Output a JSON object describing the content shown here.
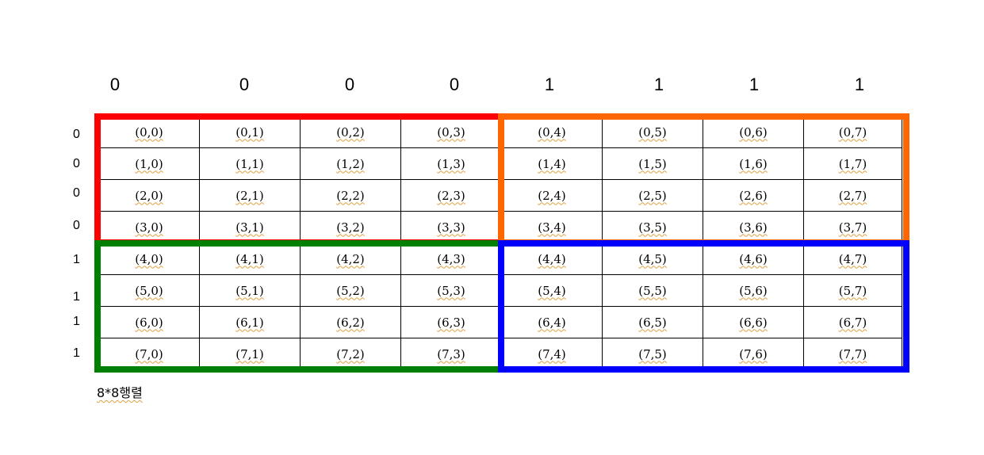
{
  "column_labels": [
    "0",
    "0",
    "0",
    "0",
    "1",
    "1",
    "1",
    "1"
  ],
  "row_labels": [
    "0",
    "0",
    "0",
    "0",
    "1",
    "1",
    "1",
    "1"
  ],
  "cells": [
    [
      "(0,0)",
      "(0,1)",
      "(0,2)",
      "(0,3)",
      "(0,4)",
      "(0,5)",
      "(0,6)",
      "(0,7)"
    ],
    [
      "(1,0)",
      "(1,1)",
      "(1,2)",
      "(1,3)",
      "(1,4)",
      "(1,5)",
      "(1,6)",
      "(1,7)"
    ],
    [
      "(2,0)",
      "(2,1)",
      "(2,2)",
      "(2,3)",
      "(2,4)",
      "(2,5)",
      "(2,6)",
      "(2,7)"
    ],
    [
      "(3,0)",
      "(3,1)",
      "(3,2)",
      "(3,3)",
      "(3,4)",
      "(3,5)",
      "(3,6)",
      "(3,7)"
    ],
    [
      "(4,0)",
      "(4,1)",
      "(4,2)",
      "(4,3)",
      "(4,4)",
      "(4,5)",
      "(4,6)",
      "(4,7)"
    ],
    [
      "(5,0)",
      "(5,1)",
      "(5,2)",
      "(5,3)",
      "(5,4)",
      "(5,5)",
      "(5,6)",
      "(5,7)"
    ],
    [
      "(6,0)",
      "(6,1)",
      "(6,2)",
      "(6,3)",
      "(6,4)",
      "(6,5)",
      "(6,6)",
      "(6,7)"
    ],
    [
      "(7,0)",
      "(7,1)",
      "(7,2)",
      "(7,3)",
      "(7,4)",
      "(7,5)",
      "(7,6)",
      "(7,7)"
    ]
  ],
  "quadrant_colors": {
    "top_left": "#ff0000",
    "top_right": "#ff6600",
    "bottom_left": "#008000",
    "bottom_right": "#0000ff"
  },
  "caption": "8*8행렬"
}
